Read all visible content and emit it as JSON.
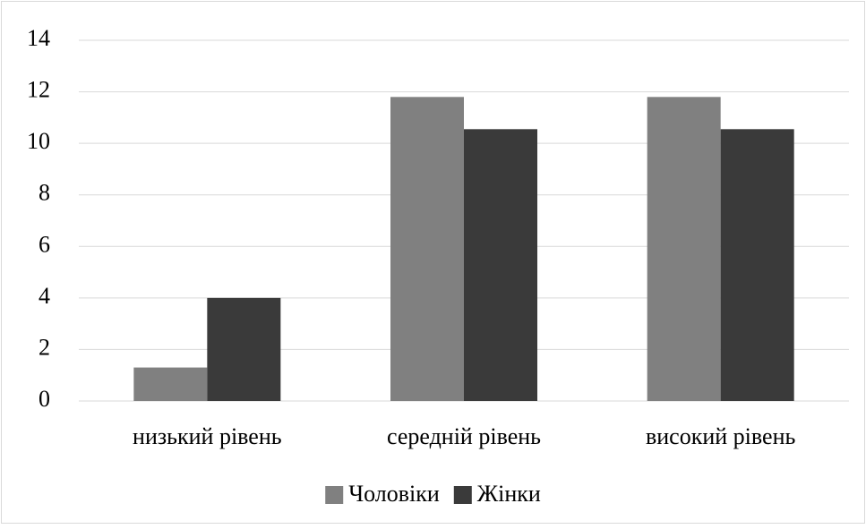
{
  "chart_data": {
    "type": "bar",
    "categories": [
      "низький рівень",
      "середній рівень",
      "високий рівень"
    ],
    "series": [
      {
        "name": "Чоловіки",
        "color": "#808080",
        "values": [
          1.3,
          11.8,
          11.8
        ]
      },
      {
        "name": "Жінки",
        "color": "#3a3a3a",
        "values": [
          4.0,
          10.55,
          10.55
        ]
      }
    ],
    "ylim": [
      0,
      14
    ],
    "yticks": [
      0,
      2,
      4,
      6,
      8,
      10,
      12,
      14
    ],
    "grid": true,
    "legend": "bottom"
  }
}
